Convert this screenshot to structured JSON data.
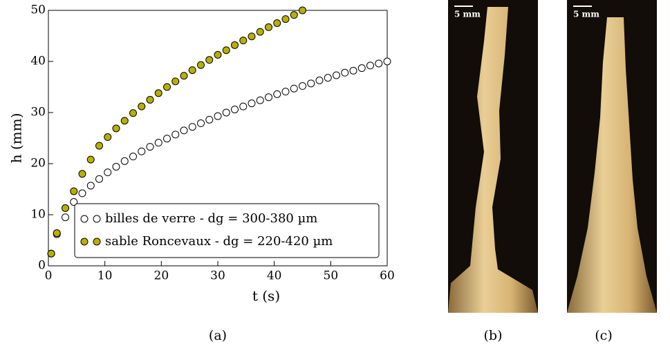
{
  "chart_data": {
    "type": "scatter",
    "xlabel": "t (s)",
    "ylabel": "h (mm)",
    "xlim": [
      0,
      60
    ],
    "ylim": [
      0,
      50
    ],
    "xticks": [
      0,
      10,
      20,
      30,
      40,
      50,
      60
    ],
    "yticks": [
      0,
      10,
      20,
      30,
      40,
      50
    ],
    "grid": false,
    "legend": "lower right",
    "series": [
      {
        "name": "billes de verre - dg = 300-380 µm",
        "color": "#ffffff",
        "x": [
          0.5,
          1.5,
          3,
          4.5,
          6,
          7.5,
          9,
          10.5,
          12,
          13.5,
          15,
          16.5,
          18,
          19.5,
          21,
          22.5,
          24,
          25.5,
          27,
          28.5,
          30,
          31.5,
          33,
          34.5,
          36,
          37.5,
          39,
          40.5,
          42,
          43.5,
          45,
          46.5,
          48,
          49.5,
          51,
          52.5,
          54,
          55.5,
          57,
          58.5,
          60
        ],
        "values": [
          2.4,
          6.2,
          9.5,
          12.5,
          14.2,
          15.7,
          17.0,
          18.3,
          19.4,
          20.5,
          21.4,
          22.4,
          23.3,
          24.1,
          24.9,
          25.7,
          26.5,
          27.2,
          27.9,
          28.6,
          29.3,
          30.0,
          30.6,
          31.2,
          31.8,
          32.4,
          33.0,
          33.6,
          34.1,
          34.7,
          35.2,
          35.7,
          36.3,
          36.8,
          37.3,
          37.8,
          38.2,
          38.7,
          39.2,
          39.6,
          40
        ]
      },
      {
        "name": "sable Roncevaux - dg = 220-420 µm",
        "color": "#b8b000",
        "x": [
          0.5,
          1.5,
          3,
          4.5,
          6,
          7.5,
          9,
          10.5,
          12,
          13.5,
          15,
          16.5,
          18,
          19.5,
          21,
          22.5,
          24,
          25.5,
          27,
          28.5,
          30,
          31.5,
          33,
          34.5,
          36,
          37.5,
          39,
          40.5,
          42,
          43.5,
          45
        ],
        "values": [
          2.4,
          6.4,
          11.3,
          14.6,
          18.0,
          20.8,
          23.5,
          25.2,
          26.9,
          28.4,
          29.9,
          31.2,
          32.5,
          33.8,
          35.0,
          36.1,
          37.2,
          38.3,
          39.3,
          40.3,
          41.3,
          42.2,
          43.2,
          44.1,
          44.9,
          45.8,
          46.7,
          47.5,
          48.3,
          49.1,
          50
        ]
      }
    ]
  },
  "photos": [
    {
      "scale": "5 mm",
      "caption": "(b)"
    },
    {
      "scale": "5 mm",
      "caption": "(c)"
    }
  ],
  "caption": "(a)"
}
